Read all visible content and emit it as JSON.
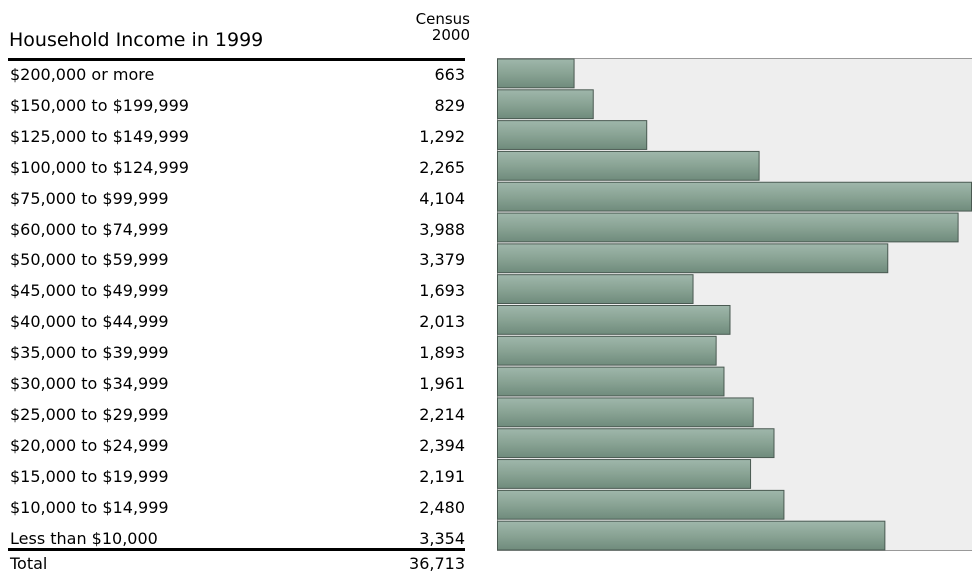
{
  "table": {
    "title": "Household Income in 1999",
    "column_header_line1": "Census",
    "column_header_line2": "2000",
    "total_label": "Total",
    "total_value": "36,713"
  },
  "chart_data": {
    "type": "bar",
    "orientation": "horizontal",
    "categories": [
      "$200,000 or more",
      "$150,000 to $199,999",
      "$125,000 to $149,999",
      "$100,000 to $124,999",
      "$75,000 to $99,999",
      "$60,000 to $74,999",
      "$50,000 to $59,999",
      "$45,000 to $49,999",
      "$40,000 to $44,999",
      "$35,000 to $39,999",
      "$30,000 to $34,999",
      "$25,000 to $29,999",
      "$20,000 to $24,999",
      "$15,000 to $19,999",
      "$10,000 to $14,999",
      "Less than $10,000"
    ],
    "values": [
      663,
      829,
      1292,
      2265,
      4104,
      3988,
      3379,
      1693,
      2013,
      1893,
      1961,
      2214,
      2394,
      2191,
      2480,
      3354
    ],
    "value_labels": [
      "663",
      "829",
      "1,292",
      "2,265",
      "4,104",
      "3,988",
      "3,379",
      "1,693",
      "2,013",
      "1,893",
      "1,961",
      "2,214",
      "2,394",
      "2,191",
      "2,480",
      "3,354"
    ],
    "xlim": [
      0,
      4104
    ],
    "grid": false,
    "colors": {
      "bar_fill_top": "#9fb7ab",
      "bar_fill_mid": "#89a394",
      "bar_fill_bottom": "#6f8b7c",
      "bar_stroke": "#4a5a52",
      "plot_background": "#eeeeee",
      "plot_border": "#999999"
    }
  }
}
